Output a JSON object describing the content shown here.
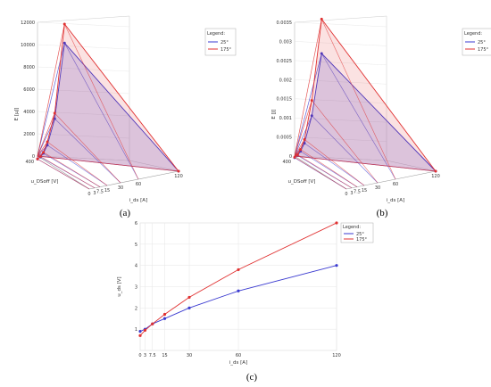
{
  "chart_data": [
    {
      "panel": "(a)",
      "type": "area",
      "subtype": "3d-surface",
      "ylabel": "E [µJ]",
      "xlabel": "i_ds [A]",
      "zlabel": "u_DSoff [V]",
      "z_tick_visible": "400",
      "y_ticks": [
        "0",
        "2000",
        "4000",
        "6000",
        "8000",
        "10000",
        "12000"
      ],
      "ylim": [
        0,
        12000
      ],
      "x_ticks": [
        "0",
        "3",
        "7.5",
        "15",
        "30",
        "60",
        "120"
      ],
      "legend": {
        "title": "Legend:",
        "placement": "right",
        "entries": [
          "25°",
          "175°"
        ]
      },
      "colors": {
        "25°": "#3a3ad0",
        "175°": "#e03030"
      },
      "x": [
        0,
        3,
        7.5,
        15,
        30,
        60,
        120
      ],
      "series": [
        {
          "name": "25°",
          "values": [
            50,
            200,
            500,
            1200,
            3500,
            10200,
            0
          ]
        },
        {
          "name": "175°",
          "values": [
            60,
            250,
            600,
            1500,
            4000,
            11900,
            0
          ]
        }
      ]
    },
    {
      "panel": "(b)",
      "type": "area",
      "subtype": "3d-surface",
      "ylabel": "E [J]",
      "xlabel": "i_ds [A]",
      "zlabel": "u_DSoff [V]",
      "z_tick_visible": "400",
      "y_ticks": [
        "0",
        "0.0005",
        "0.001",
        "0.0015",
        "0.002",
        "0.0025",
        "0.003",
        "0.0035"
      ],
      "ylim": [
        0,
        0.0035
      ],
      "x_ticks": [
        "0",
        "3",
        "7.5",
        "15",
        "30",
        "60",
        "120"
      ],
      "legend": {
        "title": "Legend:",
        "placement": "right",
        "entries": [
          "25°",
          "175°"
        ]
      },
      "colors": {
        "25°": "#3a3ad0",
        "175°": "#e03030"
      },
      "x": [
        0,
        3,
        7.5,
        15,
        30,
        60,
        120
      ],
      "series": [
        {
          "name": "25°",
          "values": [
            5e-05,
            0.0001,
            0.0002,
            0.0004,
            0.0011,
            0.0027,
            0
          ]
        },
        {
          "name": "175°",
          "values": [
            6e-05,
            0.00012,
            0.00025,
            0.0005,
            0.0015,
            0.0036,
            0
          ]
        }
      ]
    },
    {
      "panel": "(c)",
      "type": "line",
      "ylabel": "u_ds [V]",
      "xlabel": "i_ds [A]",
      "xlim": [
        0,
        120
      ],
      "ylim": [
        0,
        6
      ],
      "x_ticks": [
        "0",
        "3",
        "7.5",
        "15",
        "30",
        "60",
        "120"
      ],
      "y_ticks": [
        "1",
        "2",
        "3",
        "4",
        "5",
        "6"
      ],
      "grid": true,
      "legend": {
        "title": "Legend:",
        "placement": "top-right",
        "entries": [
          "25°",
          "175°"
        ]
      },
      "colors": {
        "25°": "#3a3ad0",
        "175°": "#e03030"
      },
      "x": [
        0,
        3,
        7.5,
        15,
        30,
        60,
        120
      ],
      "series": [
        {
          "name": "25°",
          "values": [
            0.9,
            1.0,
            1.25,
            1.5,
            2.0,
            2.8,
            4.0
          ]
        },
        {
          "name": "175°",
          "values": [
            0.7,
            0.95,
            1.25,
            1.7,
            2.5,
            3.8,
            6.0
          ]
        }
      ]
    }
  ],
  "captions": {
    "a": "(a)",
    "b": "(b)",
    "c": "(c)"
  }
}
